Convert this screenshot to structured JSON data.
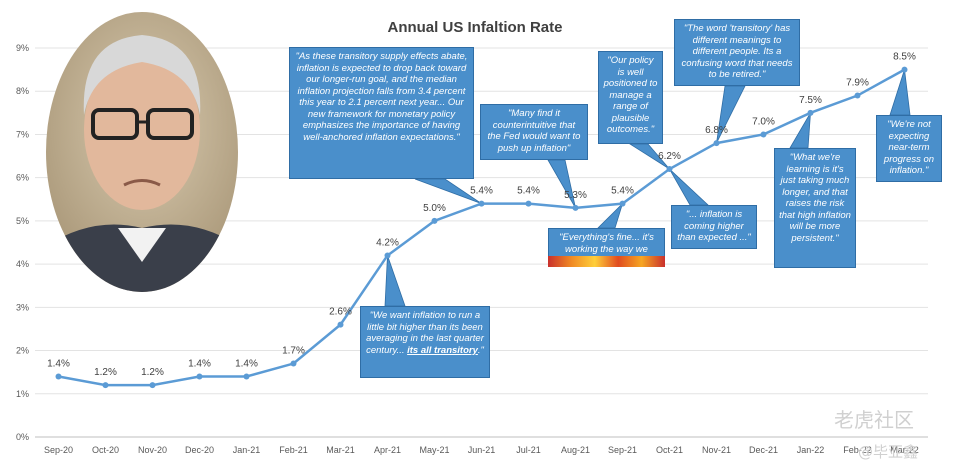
{
  "chart_data": {
    "type": "line",
    "title": "Annual US Infaltion Rate",
    "categories": [
      "Sep-20",
      "Oct-20",
      "Nov-20",
      "Dec-20",
      "Jan-21",
      "Feb-21",
      "Mar-21",
      "Apr-21",
      "May-21",
      "Jun-21",
      "Jul-21",
      "Aug-21",
      "Sep-21",
      "Oct-21",
      "Nov-21",
      "Dec-21",
      "Jan-22",
      "Feb-22",
      "Mar-22"
    ],
    "values": [
      1.4,
      1.2,
      1.2,
      1.4,
      1.4,
      1.7,
      2.6,
      4.2,
      5.0,
      5.4,
      5.4,
      5.3,
      5.4,
      6.2,
      6.8,
      7.0,
      7.5,
      7.9,
      8.5
    ],
    "data_labels": [
      "1.4%",
      "1.2%",
      "1.2%",
      "1.4%",
      "1.4%",
      "1.7%",
      "2.6%",
      "4.2%",
      "5.0%",
      "5.4%",
      "5.4%",
      "5.3%",
      "5.4%",
      "6.2%",
      "6.8%",
      "7.0%",
      "7.5%",
      "7.9%",
      "8.5%"
    ],
    "y_ticks": [
      "0%",
      "1%",
      "2%",
      "3%",
      "4%",
      "5%",
      "6%",
      "7%",
      "8%",
      "9%"
    ],
    "ylim": [
      0,
      9
    ],
    "grid": true,
    "series_color": "#5b9bd5"
  },
  "callouts": {
    "c1": "\"As these transitory supply effects abate, inflation is expected to drop back toward our longer-run goal, and the median inflation projection falls from 3.4 percent this year to 2.1 percent next year... Our new framework for monetary policy emphasizes the importance of having well-anchored inflation expectations.\"",
    "c2": "\"Many find it counterintuitive that the Fed would want to push up inflation\"",
    "c3": "\"Our policy is well positioned to manage a range of plausible outcomes.\"",
    "c4": "\"The word 'transitory' has different meanings to different people. Its a confusing word that needs to be retired.\"",
    "c5": "\"We're not expecting near-term progress on inflation.\"",
    "c6_pre": "\"We want inflation to run a little bit higher than its been averaging in the last quarter century... ",
    "c6_bold": "its all transitory",
    "c6_post": ".\"",
    "c7": "\"Everything's fine... it's working the way we expected it to.\"",
    "c8": "\"... inflation is coming higher than expected ...\"",
    "c9": "\"What we're learning is it's just taking much longer, and that raises the risk that high inflation will be more persistent.\""
  },
  "watermark": {
    "site": "老虎社区",
    "author": "@毕亚鑫"
  }
}
